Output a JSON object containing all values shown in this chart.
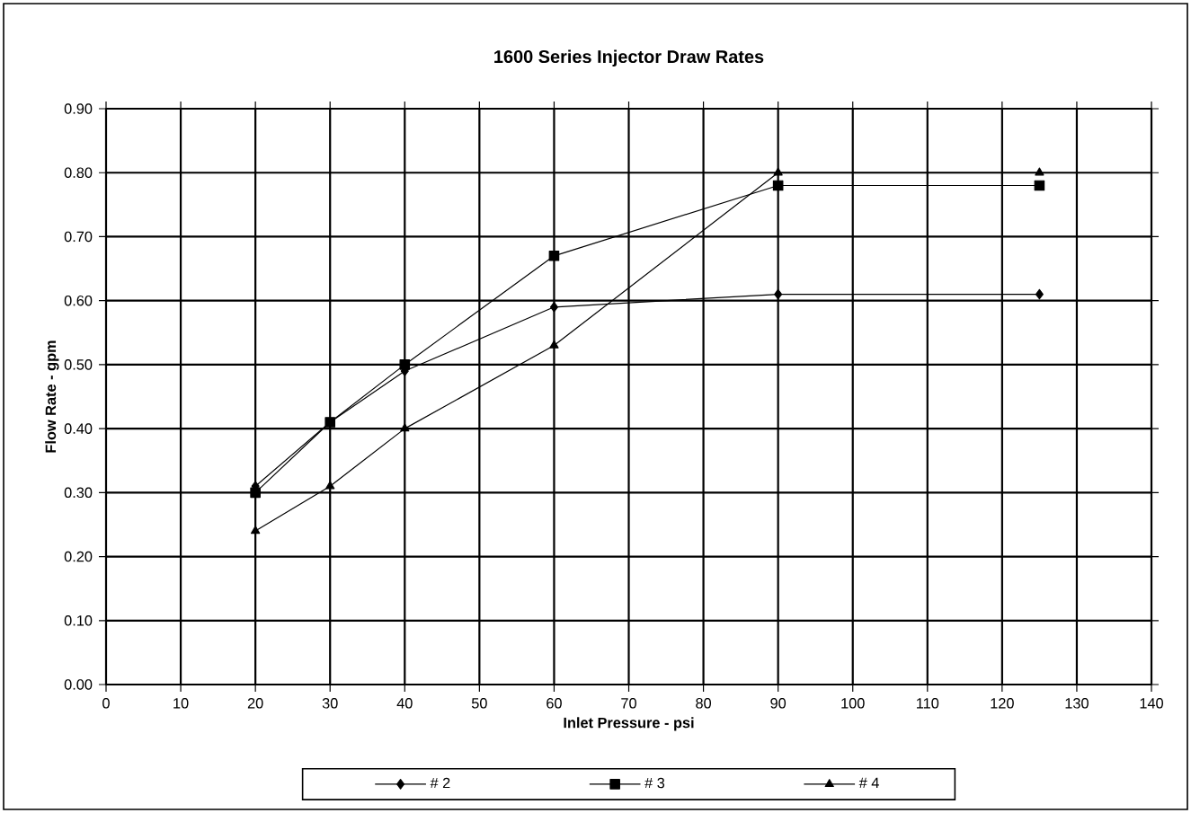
{
  "chart_data": {
    "type": "line",
    "title": "1600 Series Injector Draw Rates",
    "xlabel": "Inlet Pressure - psi",
    "ylabel": "Flow Rate - gpm",
    "x": [
      20,
      30,
      40,
      60,
      90,
      125
    ],
    "series": [
      {
        "name": "# 2",
        "color": "#000000",
        "marker": "diamond",
        "values": [
          0.31,
          0.41,
          0.49,
          0.59,
          0.61,
          0.61
        ]
      },
      {
        "name": "# 3",
        "color": "#000000",
        "marker": "square",
        "values": [
          0.3,
          0.41,
          0.5,
          0.67,
          0.78,
          0.78
        ]
      },
      {
        "name": "# 4",
        "color": "#000000",
        "marker": "triangle",
        "values": [
          0.24,
          0.31,
          0.4,
          0.53,
          0.8,
          0.8
        ]
      }
    ],
    "xlim": [
      0,
      140
    ],
    "xticks": [
      0,
      10,
      20,
      30,
      40,
      50,
      60,
      70,
      80,
      90,
      100,
      110,
      120,
      130,
      140
    ],
    "ylim": [
      0,
      0.9
    ],
    "yticks": [
      {
        "value": 0,
        "label": "0.00"
      },
      {
        "value": 0.1,
        "label": "0.10"
      },
      {
        "value": 0.2,
        "label": "0.20"
      },
      {
        "value": 0.3,
        "label": "0.30"
      },
      {
        "value": 0.4,
        "label": "0.40"
      },
      {
        "value": 0.5,
        "label": "0.50"
      },
      {
        "value": 0.6,
        "label": "0.60"
      },
      {
        "value": 0.7,
        "label": "0.70"
      },
      {
        "value": 0.8,
        "label": "0.80"
      },
      {
        "value": 0.9,
        "label": "0.90"
      }
    ],
    "grid": true,
    "legend": "bottom",
    "line_style": "solid"
  }
}
